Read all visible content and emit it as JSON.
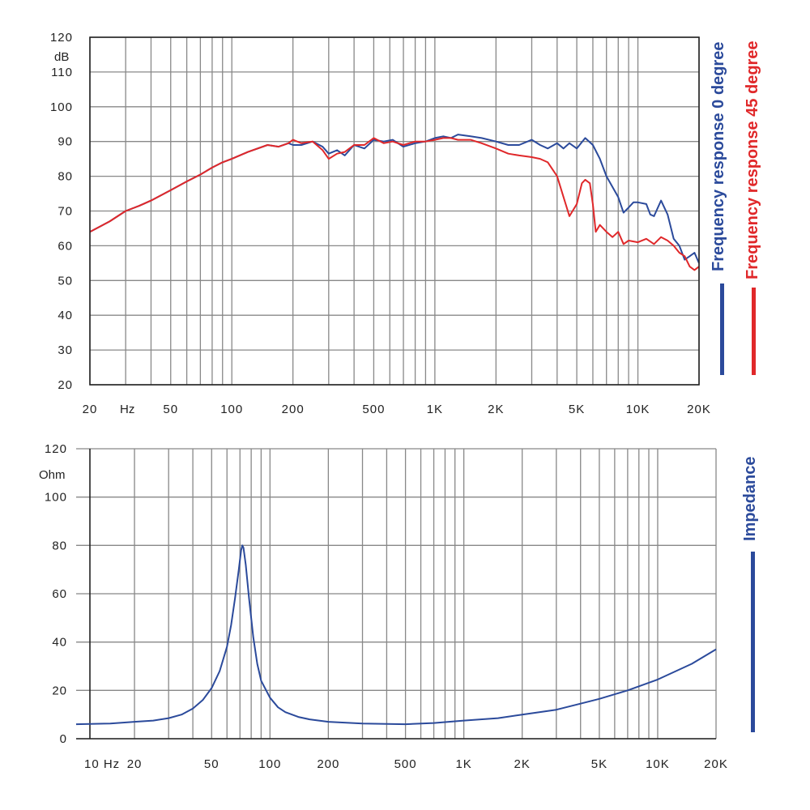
{
  "chart_data": [
    {
      "type": "line",
      "title": "Frequency response",
      "x_scale": "log",
      "xlim": [
        20,
        20000
      ],
      "ylim": [
        20,
        120
      ],
      "y_unit": "dB",
      "x_unit": "Hz",
      "y_ticks": [
        20,
        30,
        40,
        50,
        60,
        70,
        80,
        90,
        100,
        110,
        120
      ],
      "x_tick_labels": [
        {
          "value": 20,
          "label": "20"
        },
        {
          "value": 50,
          "label": "50"
        },
        {
          "value": 100,
          "label": "100"
        },
        {
          "value": 200,
          "label": "200"
        },
        {
          "value": 500,
          "label": "500"
        },
        {
          "value": 1000,
          "label": "1K"
        },
        {
          "value": 2000,
          "label": "2K"
        },
        {
          "value": 5000,
          "label": "5K"
        },
        {
          "value": 10000,
          "label": "10K"
        },
        {
          "value": 20000,
          "label": "20K"
        }
      ],
      "series": [
        {
          "name": "Frequency response 0 degree",
          "color": "#2b4a9b",
          "points": [
            [
              20,
              64
            ],
            [
              25,
              67
            ],
            [
              30,
              70
            ],
            [
              35,
              71.5
            ],
            [
              40,
              73
            ],
            [
              50,
              76
            ],
            [
              60,
              78.5
            ],
            [
              70,
              80.5
            ],
            [
              80,
              82.5
            ],
            [
              90,
              84
            ],
            [
              100,
              85
            ],
            [
              120,
              87
            ],
            [
              150,
              89
            ],
            [
              170,
              88.5
            ],
            [
              190,
              89.5
            ],
            [
              200,
              89
            ],
            [
              220,
              89
            ],
            [
              250,
              90
            ],
            [
              280,
              88.5
            ],
            [
              300,
              86.5
            ],
            [
              330,
              87.5
            ],
            [
              360,
              86
            ],
            [
              400,
              89
            ],
            [
              450,
              88
            ],
            [
              500,
              90.5
            ],
            [
              560,
              90
            ],
            [
              620,
              90.5
            ],
            [
              700,
              88.5
            ],
            [
              800,
              89.5
            ],
            [
              900,
              90
            ],
            [
              1000,
              91
            ],
            [
              1100,
              91.5
            ],
            [
              1200,
              91
            ],
            [
              1300,
              92
            ],
            [
              1500,
              91.5
            ],
            [
              1700,
              91
            ],
            [
              2000,
              90
            ],
            [
              2300,
              89
            ],
            [
              2600,
              89
            ],
            [
              3000,
              90.5
            ],
            [
              3300,
              89
            ],
            [
              3600,
              88
            ],
            [
              4000,
              89.5
            ],
            [
              4300,
              88
            ],
            [
              4600,
              89.5
            ],
            [
              5000,
              88
            ],
            [
              5500,
              91
            ],
            [
              6000,
              89
            ],
            [
              6500,
              85
            ],
            [
              7000,
              80
            ],
            [
              8000,
              74
            ],
            [
              8500,
              69.5
            ],
            [
              9000,
              71
            ],
            [
              9500,
              72.5
            ],
            [
              10000,
              72.5
            ],
            [
              11000,
              72
            ],
            [
              11500,
              69
            ],
            [
              12000,
              68.5
            ],
            [
              13000,
              73
            ],
            [
              14000,
              69
            ],
            [
              15000,
              62
            ],
            [
              16000,
              60
            ],
            [
              17000,
              56
            ],
            [
              18000,
              57
            ],
            [
              19000,
              58
            ],
            [
              20000,
              55
            ]
          ]
        },
        {
          "name": "Frequency response 45 degree",
          "color": "#e0282a",
          "points": [
            [
              20,
              64
            ],
            [
              25,
              67
            ],
            [
              30,
              70
            ],
            [
              35,
              71.5
            ],
            [
              40,
              73
            ],
            [
              50,
              76
            ],
            [
              60,
              78.5
            ],
            [
              70,
              80.5
            ],
            [
              80,
              82.5
            ],
            [
              90,
              84
            ],
            [
              100,
              85
            ],
            [
              120,
              87
            ],
            [
              150,
              89
            ],
            [
              170,
              88.5
            ],
            [
              190,
              89.5
            ],
            [
              200,
              90.5
            ],
            [
              220,
              89.5
            ],
            [
              250,
              90
            ],
            [
              280,
              87.5
            ],
            [
              300,
              85
            ],
            [
              330,
              86.5
            ],
            [
              360,
              87
            ],
            [
              400,
              89
            ],
            [
              450,
              89
            ],
            [
              500,
              91
            ],
            [
              560,
              89.5
            ],
            [
              620,
              90
            ],
            [
              700,
              89
            ],
            [
              800,
              90
            ],
            [
              900,
              90
            ],
            [
              1000,
              90.5
            ],
            [
              1100,
              91
            ],
            [
              1200,
              91
            ],
            [
              1300,
              90.5
            ],
            [
              1500,
              90.5
            ],
            [
              1700,
              89.5
            ],
            [
              2000,
              88
            ],
            [
              2300,
              86.5
            ],
            [
              2600,
              86
            ],
            [
              3000,
              85.5
            ],
            [
              3300,
              85
            ],
            [
              3600,
              84
            ],
            [
              4000,
              80
            ],
            [
              4300,
              74
            ],
            [
              4600,
              68.5
            ],
            [
              5000,
              72
            ],
            [
              5300,
              78
            ],
            [
              5500,
              79
            ],
            [
              5800,
              78
            ],
            [
              6000,
              72
            ],
            [
              6200,
              64
            ],
            [
              6500,
              66
            ],
            [
              7000,
              64
            ],
            [
              7500,
              62.5
            ],
            [
              8000,
              64
            ],
            [
              8500,
              60.5
            ],
            [
              9000,
              61.5
            ],
            [
              10000,
              61
            ],
            [
              11000,
              62
            ],
            [
              12000,
              60.5
            ],
            [
              13000,
              62.5
            ],
            [
              14000,
              61.5
            ],
            [
              15000,
              60
            ],
            [
              16000,
              58
            ],
            [
              17000,
              57
            ],
            [
              18000,
              54
            ],
            [
              19000,
              53
            ],
            [
              20000,
              54
            ]
          ]
        }
      ]
    },
    {
      "type": "line",
      "title": "Impedance",
      "x_scale": "log",
      "xlim": [
        10,
        20000
      ],
      "ylim": [
        0,
        120
      ],
      "y_unit": "Ohm",
      "x_unit": "Hz",
      "y_ticks": [
        0,
        20,
        40,
        60,
        80,
        100,
        120
      ],
      "x_tick_labels": [
        {
          "value": 10,
          "label": "10 Hz"
        },
        {
          "value": 20,
          "label": "20"
        },
        {
          "value": 50,
          "label": "50"
        },
        {
          "value": 100,
          "label": "100"
        },
        {
          "value": 200,
          "label": "200"
        },
        {
          "value": 500,
          "label": "500"
        },
        {
          "value": 1000,
          "label": "1K"
        },
        {
          "value": 2000,
          "label": "2K"
        },
        {
          "value": 5000,
          "label": "5K"
        },
        {
          "value": 10000,
          "label": "10K"
        },
        {
          "value": 20000,
          "label": "20K"
        }
      ],
      "series": [
        {
          "name": "Impedance",
          "color": "#2b4a9b",
          "points": [
            [
              10,
              6
            ],
            [
              15,
              6.3
            ],
            [
              20,
              7
            ],
            [
              25,
              7.5
            ],
            [
              30,
              8.5
            ],
            [
              35,
              10
            ],
            [
              40,
              12.5
            ],
            [
              45,
              16
            ],
            [
              50,
              21
            ],
            [
              55,
              28
            ],
            [
              60,
              38
            ],
            [
              63,
              47
            ],
            [
              66,
              58
            ],
            [
              69,
              70
            ],
            [
              71,
              78
            ],
            [
              72,
              80
            ],
            [
              73,
              79
            ],
            [
              75,
              72
            ],
            [
              78,
              58
            ],
            [
              82,
              42
            ],
            [
              86,
              31
            ],
            [
              90,
              24
            ],
            [
              100,
              17
            ],
            [
              110,
              13
            ],
            [
              120,
              11
            ],
            [
              140,
              9
            ],
            [
              160,
              8
            ],
            [
              200,
              7
            ],
            [
              300,
              6.3
            ],
            [
              500,
              6
            ],
            [
              700,
              6.5
            ],
            [
              1000,
              7.5
            ],
            [
              1500,
              8.5
            ],
            [
              2000,
              10
            ],
            [
              3000,
              12
            ],
            [
              4000,
              14.5
            ],
            [
              5000,
              16.5
            ],
            [
              7000,
              20
            ],
            [
              10000,
              24.5
            ],
            [
              15000,
              31
            ],
            [
              20000,
              37
            ]
          ]
        }
      ]
    }
  ],
  "legend": {
    "fr0": "Frequency response 0 degree",
    "fr45": "Frequency response 45 degree",
    "imp": "Impedance"
  }
}
